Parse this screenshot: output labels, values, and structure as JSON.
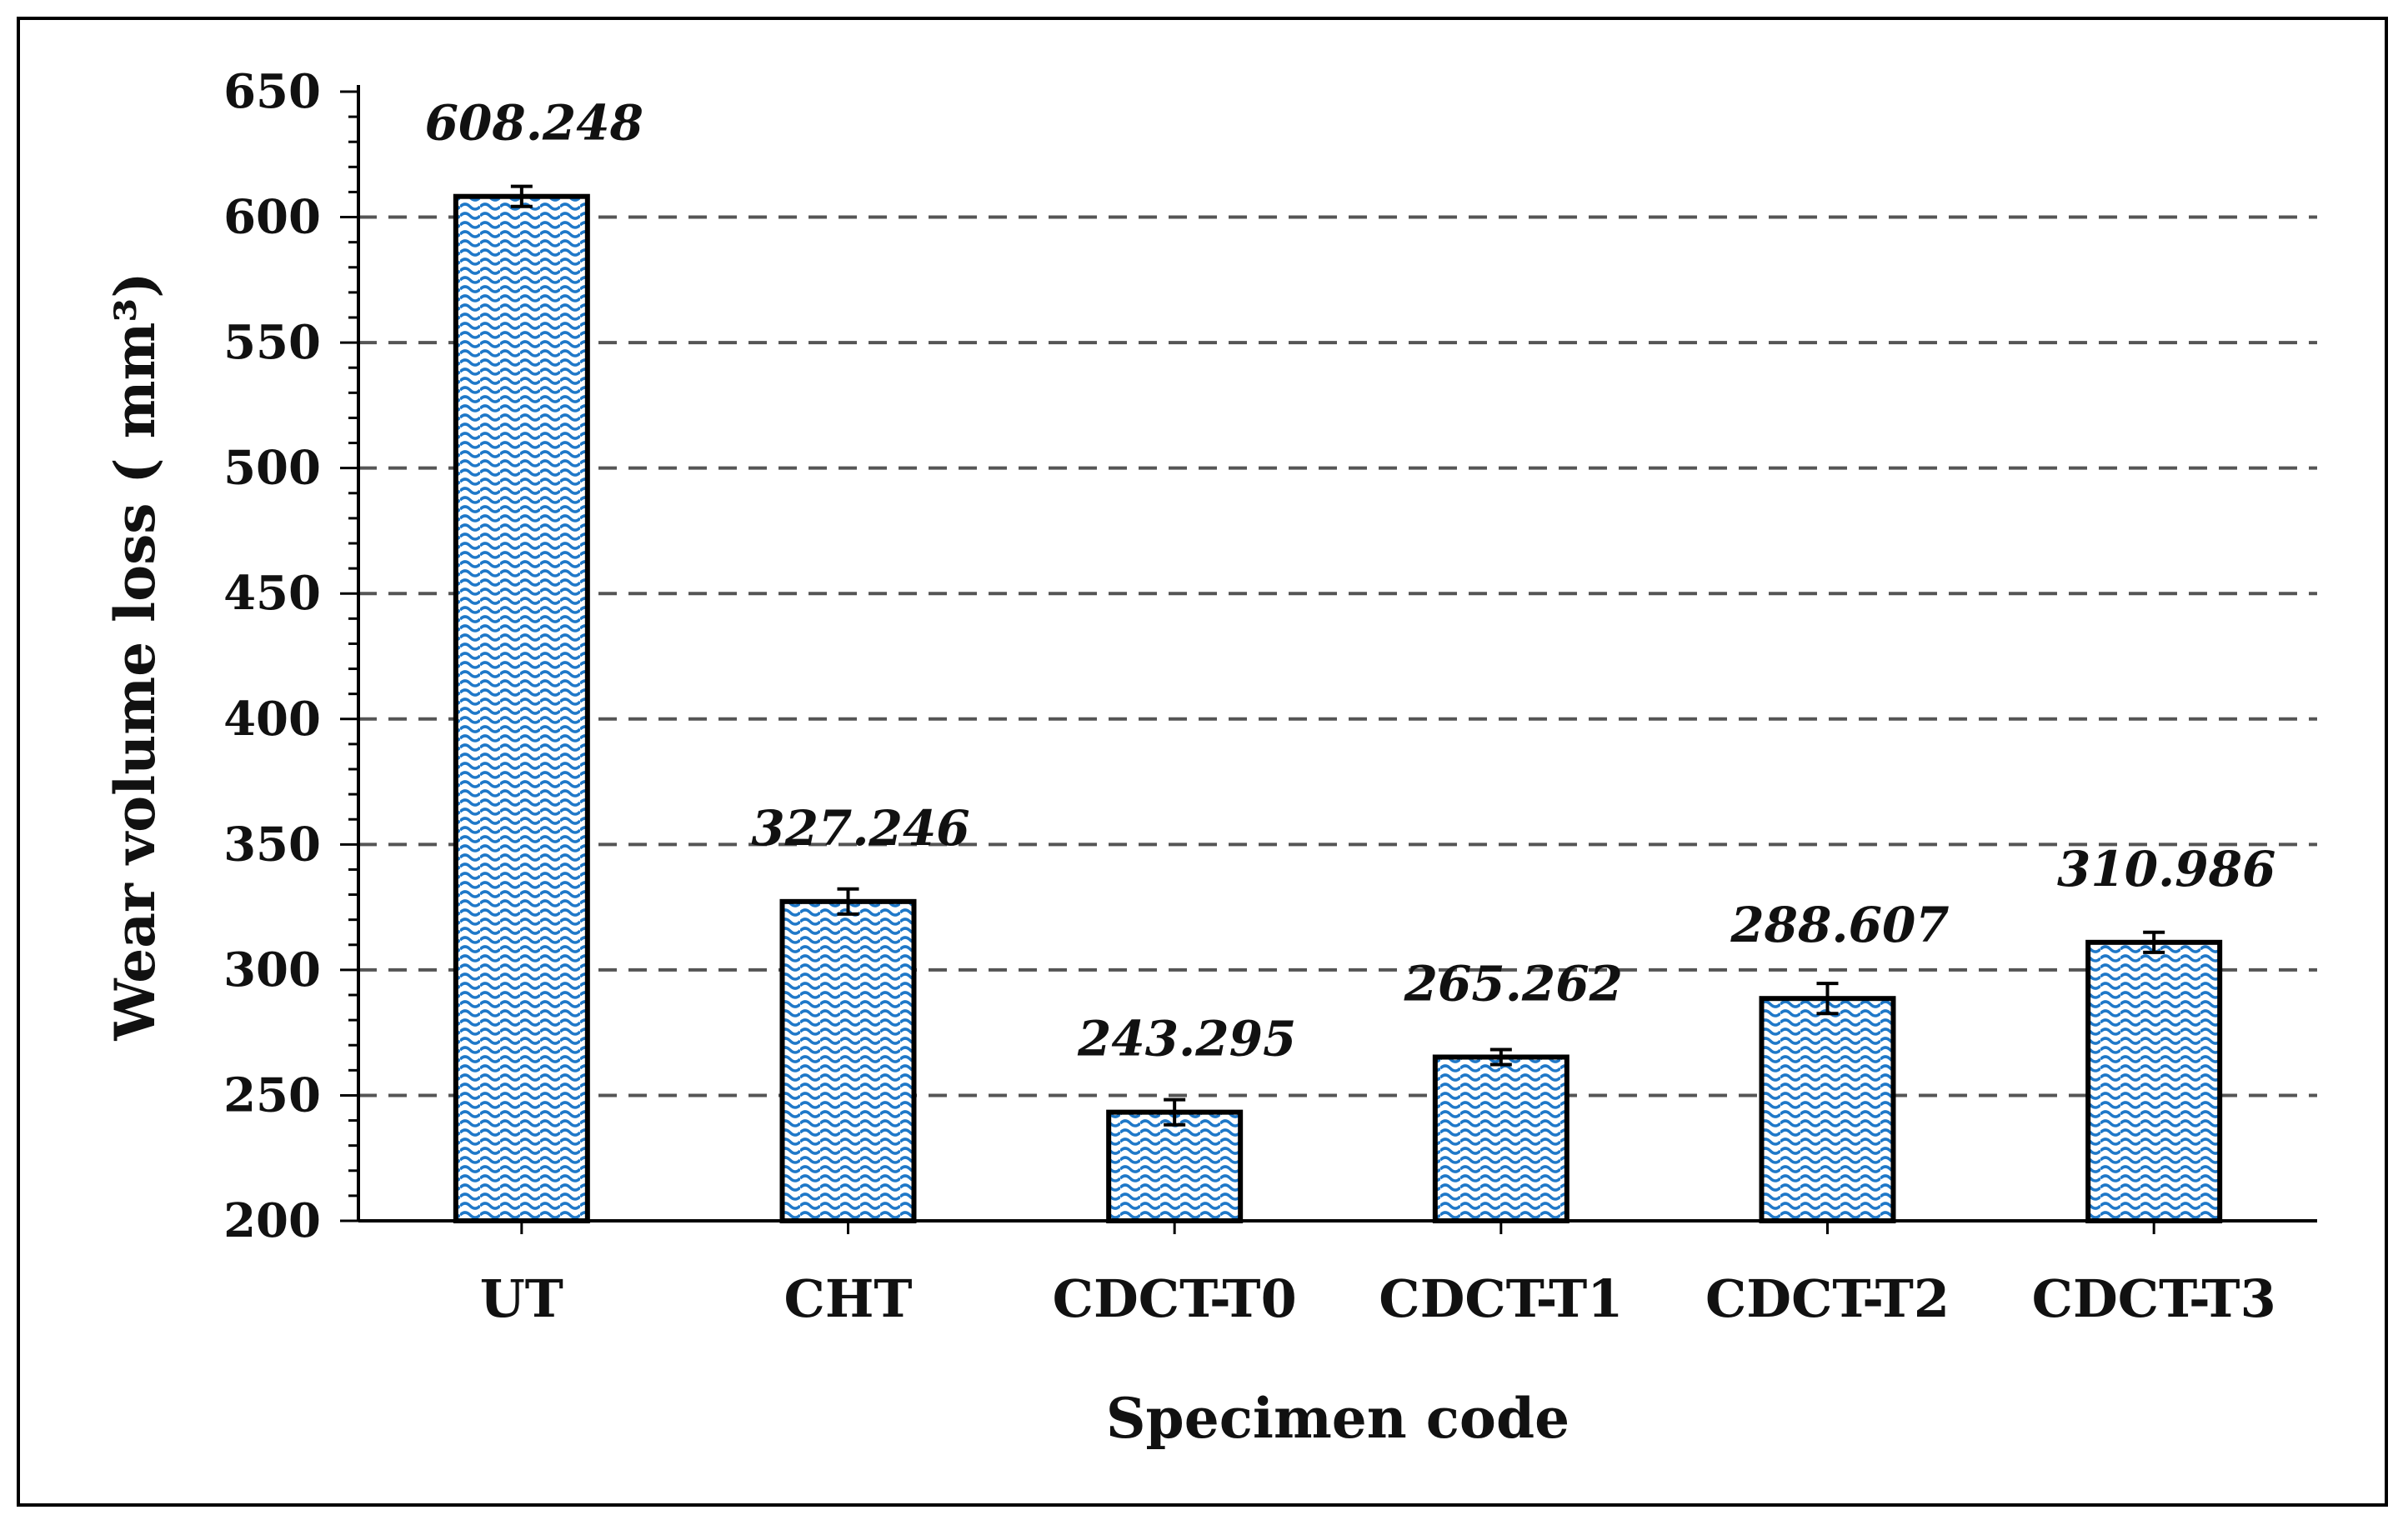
{
  "chart_data": {
    "type": "bar",
    "title": "",
    "xlabel": "Specimen code",
    "ylabel": "Wear volume loss ( mm³)",
    "categories": [
      "UT",
      "CHT",
      "CDCT-T0",
      "CDCT-T1",
      "CDCT-T2",
      "CDCT-T3"
    ],
    "values": [
      608.248,
      327.246,
      243.295,
      265.262,
      288.607,
      310.986
    ],
    "value_labels": [
      "608.248",
      "327.246",
      "243.295",
      "265.262",
      "288.607",
      "310.986"
    ],
    "error": [
      4,
      5,
      5,
      3,
      6,
      4
    ],
    "ylim": [
      200,
      650
    ],
    "yticks": [
      "200",
      "250",
      "300",
      "350",
      "400",
      "450",
      "500",
      "550",
      "600",
      "650"
    ],
    "grid": "dashed horizontal",
    "bar_pattern": "wave",
    "colors": {
      "bar_pattern": "#1f78c8",
      "bar_fill": "#ffffff",
      "bar_edge": "#000000",
      "grid": "#555555"
    }
  }
}
